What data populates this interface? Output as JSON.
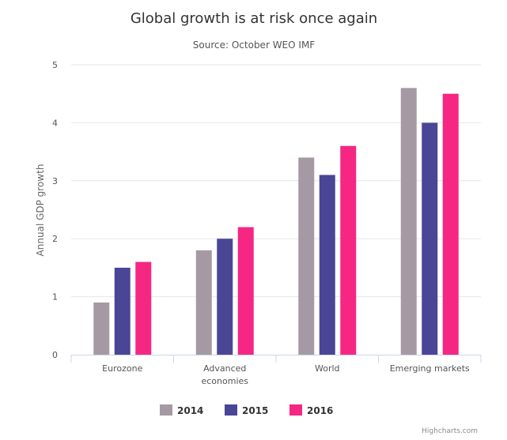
{
  "chart_data": {
    "type": "bar",
    "title": "Global growth is at risk once again",
    "subtitle": "Source: October WEO IMF",
    "xlabel": "",
    "ylabel": "Annual GDP growth",
    "categories": [
      "Eurozone",
      "Advanced economies",
      "World",
      "Emerging markets"
    ],
    "category_lines": [
      [
        "Eurozone"
      ],
      [
        "Advanced",
        "economies"
      ],
      [
        "World"
      ],
      [
        "Emerging markets"
      ]
    ],
    "series": [
      {
        "name": "2014",
        "color": "#a59aa3",
        "values": [
          0.9,
          1.8,
          3.4,
          4.6
        ]
      },
      {
        "name": "2015",
        "color": "#4b4596",
        "values": [
          1.5,
          2.0,
          3.1,
          4.0
        ]
      },
      {
        "name": "2016",
        "color": "#f52782",
        "values": [
          1.6,
          2.2,
          3.6,
          4.5
        ]
      }
    ],
    "ylim": [
      0,
      5
    ],
    "yticks": [
      0,
      1,
      2,
      3,
      4,
      5
    ],
    "grid": true,
    "legend": "bottom-center"
  },
  "credit": "Highcharts.com"
}
